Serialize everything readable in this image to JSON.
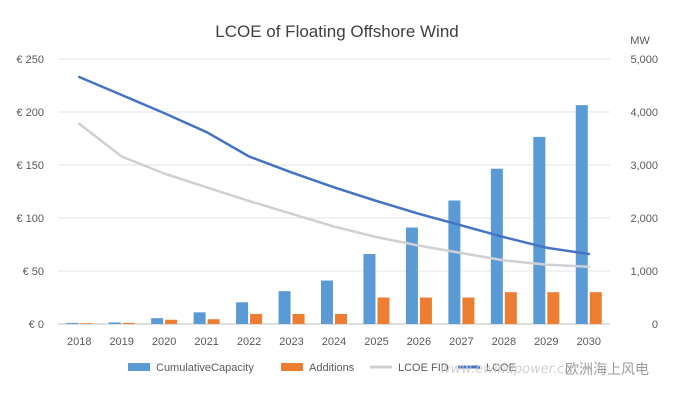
{
  "chart_data": {
    "type": "bar",
    "title": "LCOE of Floating Offshore Wind",
    "categories": [
      "2018",
      "2019",
      "2020",
      "2021",
      "2022",
      "2023",
      "2024",
      "2025",
      "2026",
      "2027",
      "2028",
      "2029",
      "2030"
    ],
    "left_axis": {
      "ticks": [
        "€ 0",
        "€ 50",
        "€ 100",
        "€ 150",
        "€ 200",
        "€ 250"
      ],
      "tick_values": [
        0,
        50,
        100,
        150,
        200,
        250
      ],
      "ylim": [
        0,
        250
      ]
    },
    "right_axis": {
      "label": "MW",
      "ticks": [
        "0",
        "1,000",
        "2,000",
        "3,000",
        "4,000",
        "5,000"
      ],
      "tick_values": [
        0,
        1000,
        2000,
        3000,
        4000,
        5000
      ],
      "ylim": [
        0,
        5000
      ]
    },
    "grid": true,
    "legend_position": "bottom",
    "series": [
      {
        "name": "CumulativeCapacity",
        "type": "bar",
        "axis": "right",
        "color": "#5b9bd5",
        "values": [
          20,
          30,
          110,
          220,
          410,
          620,
          820,
          1320,
          1820,
          2330,
          2930,
          3530,
          4130
        ]
      },
      {
        "name": "Additions",
        "type": "bar",
        "axis": "right",
        "color": "#ed7d31",
        "values": [
          15,
          20,
          80,
          90,
          190,
          190,
          190,
          500,
          500,
          500,
          600,
          600,
          600
        ]
      },
      {
        "name": "LCOE FID",
        "type": "line",
        "axis": "left",
        "color": "#d0cfd4",
        "values": [
          189,
          158,
          142,
          129,
          116,
          104,
          92,
          82,
          74,
          67,
          60,
          56,
          54
        ]
      },
      {
        "name": "LCOE",
        "type": "line",
        "axis": "left",
        "color": "#4472c4",
        "values": [
          233,
          216,
          199,
          181,
          158,
          143,
          129,
          116,
          104,
          93,
          82,
          72,
          66
        ]
      }
    ]
  },
  "legend": {
    "item1": "CumulativeCapacity",
    "item2": "Additions",
    "item3": "LCOE FID",
    "item4": "LCOE"
  },
  "watermark": {
    "url": "www.ewindpower.cn",
    "cn": "欧洲海上风电"
  }
}
